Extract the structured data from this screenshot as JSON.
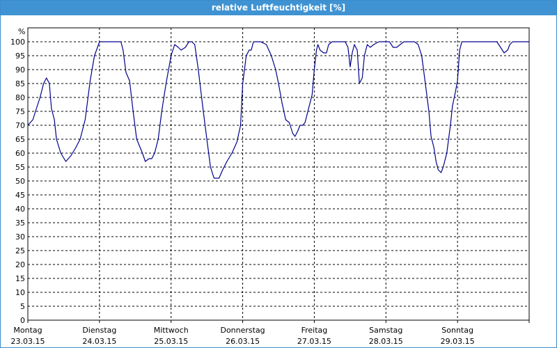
{
  "window": {
    "title": "relative Luftfeuchtigkeit [%]"
  },
  "chart_data": {
    "type": "line",
    "title": "relative Luftfeuchtigkeit [%]",
    "ylabel": "%",
    "ylim": [
      0,
      100
    ],
    "yticks": [
      0,
      5,
      10,
      15,
      20,
      25,
      30,
      35,
      40,
      45,
      50,
      55,
      60,
      65,
      70,
      75,
      80,
      85,
      90,
      95,
      100
    ],
    "xlim": [
      0,
      7
    ],
    "grid": true,
    "legend": "none",
    "line_color": "#00008b",
    "days": [
      {
        "day": "Montag",
        "date": "23.03.15"
      },
      {
        "day": "Dienstag",
        "date": "24.03.15"
      },
      {
        "day": "Mittwoch",
        "date": "25.03.15"
      },
      {
        "day": "Donnerstag",
        "date": "26.03.15"
      },
      {
        "day": "Freitag",
        "date": "27.03.15"
      },
      {
        "day": "Samstag",
        "date": "28.03.15"
      },
      {
        "day": "Sonntag",
        "date": "29.03.15"
      }
    ],
    "series": [
      {
        "values": [
          [
            0.0,
            70
          ],
          [
            0.07,
            72
          ],
          [
            0.12,
            76
          ],
          [
            0.17,
            80
          ],
          [
            0.22,
            85
          ],
          [
            0.26,
            87
          ],
          [
            0.3,
            85
          ],
          [
            0.33,
            76
          ],
          [
            0.37,
            72
          ],
          [
            0.4,
            65
          ],
          [
            0.46,
            60
          ],
          [
            0.53,
            57
          ],
          [
            0.6,
            59
          ],
          [
            0.67,
            62
          ],
          [
            0.73,
            65
          ],
          [
            0.8,
            72
          ],
          [
            0.87,
            86
          ],
          [
            0.93,
            95
          ],
          [
            1.0,
            100
          ],
          [
            1.1,
            100
          ],
          [
            1.2,
            100
          ],
          [
            1.3,
            100
          ],
          [
            1.33,
            97
          ],
          [
            1.37,
            89
          ],
          [
            1.42,
            86
          ],
          [
            1.47,
            75
          ],
          [
            1.52,
            65
          ],
          [
            1.6,
            60
          ],
          [
            1.64,
            57
          ],
          [
            1.69,
            58
          ],
          [
            1.73,
            58
          ],
          [
            1.77,
            60
          ],
          [
            1.82,
            65
          ],
          [
            1.87,
            75
          ],
          [
            1.93,
            85
          ],
          [
            2.0,
            95
          ],
          [
            2.05,
            99
          ],
          [
            2.1,
            98
          ],
          [
            2.14,
            97
          ],
          [
            2.2,
            98
          ],
          [
            2.25,
            100
          ],
          [
            2.29,
            100
          ],
          [
            2.33,
            99
          ],
          [
            2.38,
            90
          ],
          [
            2.45,
            75
          ],
          [
            2.5,
            65
          ],
          [
            2.55,
            55
          ],
          [
            2.6,
            51
          ],
          [
            2.67,
            51
          ],
          [
            2.72,
            54
          ],
          [
            2.78,
            57
          ],
          [
            2.85,
            60
          ],
          [
            2.92,
            64
          ],
          [
            2.97,
            70
          ],
          [
            3.0,
            85
          ],
          [
            3.05,
            95
          ],
          [
            3.09,
            97
          ],
          [
            3.12,
            97
          ],
          [
            3.15,
            100
          ],
          [
            3.25,
            100
          ],
          [
            3.33,
            99
          ],
          [
            3.4,
            95
          ],
          [
            3.46,
            90
          ],
          [
            3.5,
            85
          ],
          [
            3.55,
            78
          ],
          [
            3.6,
            72
          ],
          [
            3.65,
            71
          ],
          [
            3.7,
            67
          ],
          [
            3.73,
            66
          ],
          [
            3.77,
            68
          ],
          [
            3.8,
            70
          ],
          [
            3.84,
            70
          ],
          [
            3.87,
            71
          ],
          [
            3.92,
            76
          ],
          [
            3.97,
            81
          ],
          [
            4.0,
            90
          ],
          [
            4.03,
            97
          ],
          [
            4.05,
            99
          ],
          [
            4.08,
            97
          ],
          [
            4.13,
            96
          ],
          [
            4.17,
            96
          ],
          [
            4.2,
            99
          ],
          [
            4.25,
            100
          ],
          [
            4.35,
            100
          ],
          [
            4.43,
            100
          ],
          [
            4.47,
            98
          ],
          [
            4.5,
            91
          ],
          [
            4.53,
            96
          ],
          [
            4.56,
            99
          ],
          [
            4.6,
            97
          ],
          [
            4.63,
            85
          ],
          [
            4.67,
            87
          ],
          [
            4.7,
            95
          ],
          [
            4.74,
            99
          ],
          [
            4.78,
            98
          ],
          [
            4.83,
            99
          ],
          [
            4.9,
            100
          ],
          [
            5.0,
            100
          ],
          [
            5.05,
            100
          ],
          [
            5.1,
            98
          ],
          [
            5.15,
            98
          ],
          [
            5.2,
            99
          ],
          [
            5.25,
            100
          ],
          [
            5.33,
            100
          ],
          [
            5.4,
            100
          ],
          [
            5.45,
            99
          ],
          [
            5.5,
            95
          ],
          [
            5.55,
            85
          ],
          [
            5.6,
            75
          ],
          [
            5.63,
            66
          ],
          [
            5.67,
            62
          ],
          [
            5.7,
            57
          ],
          [
            5.73,
            54
          ],
          [
            5.77,
            53
          ],
          [
            5.8,
            55
          ],
          [
            5.85,
            60
          ],
          [
            5.9,
            70
          ],
          [
            5.93,
            77
          ],
          [
            5.97,
            82
          ],
          [
            6.0,
            86
          ],
          [
            6.03,
            97
          ],
          [
            6.06,
            100
          ],
          [
            6.2,
            100
          ],
          [
            6.4,
            100
          ],
          [
            6.55,
            100
          ],
          [
            6.6,
            98
          ],
          [
            6.65,
            96
          ],
          [
            6.7,
            97
          ],
          [
            6.73,
            99
          ],
          [
            6.77,
            100
          ],
          [
            6.9,
            100
          ],
          [
            7.0,
            100
          ]
        ]
      }
    ]
  }
}
